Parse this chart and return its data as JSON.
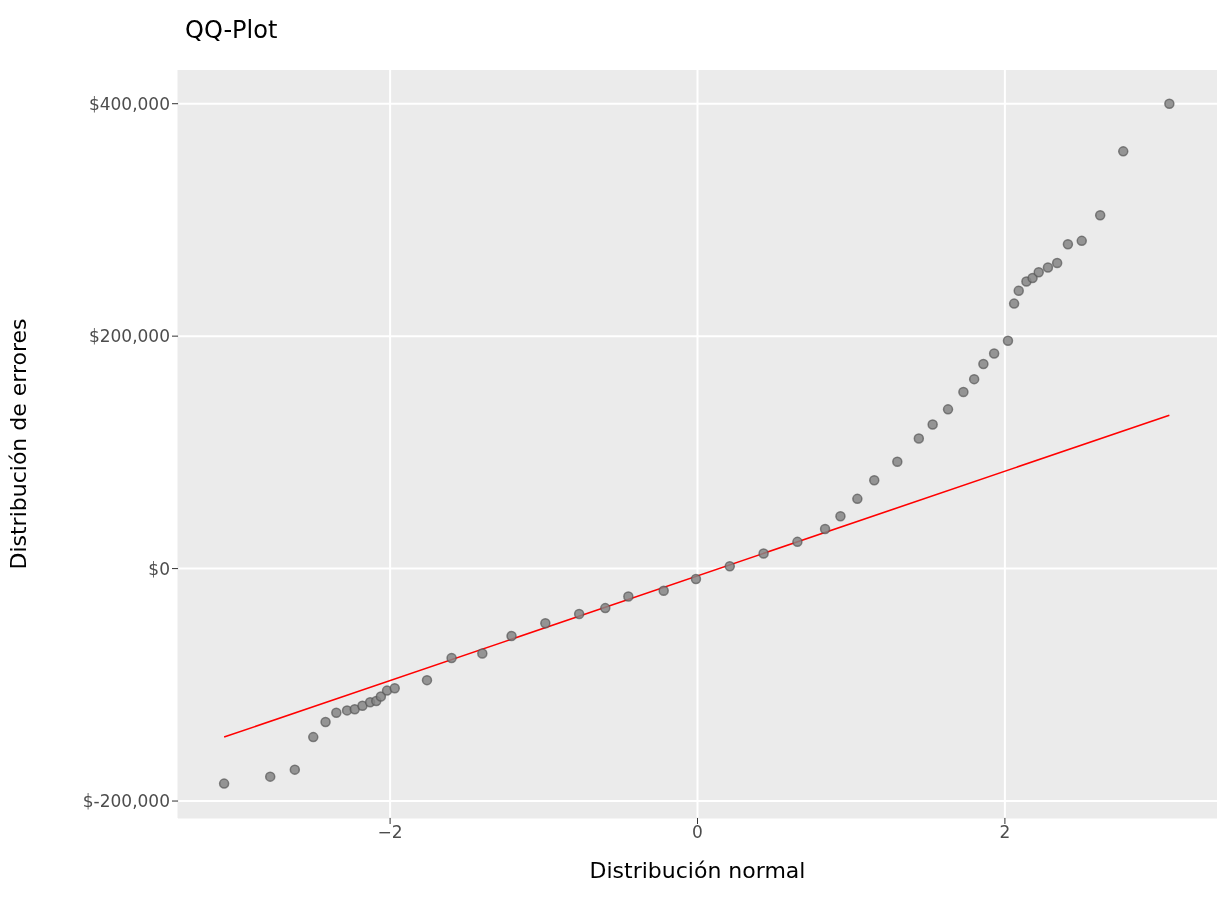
{
  "chart_data": {
    "type": "scatter",
    "title": "QQ-Plot",
    "xlabel": "Distribución normal",
    "ylabel": "Distribución de errores",
    "xlim": [
      -3.38,
      3.38
    ],
    "xticks": [
      {
        "value": -2,
        "label": "−2"
      },
      0,
      2
    ],
    "ylim": [
      -214600,
      429000
    ],
    "yticks": [
      {
        "value": -200000,
        "label": "$-200,000"
      },
      {
        "value": 0,
        "label": "$0"
      },
      {
        "value": 200000,
        "label": "$200,000"
      },
      {
        "value": 400000,
        "label": "$400,000"
      }
    ],
    "grid": true,
    "series": [
      {
        "marker": "circle",
        "color": "#858585",
        "x": [
          -3.08,
          -2.78,
          -2.62,
          -2.5,
          -2.42,
          -2.35,
          -2.28,
          -2.23,
          -2.18,
          -2.13,
          -2.09,
          -2.06,
          -2.02,
          -1.97,
          -1.76,
          -1.6,
          -1.4,
          -1.21,
          -0.99,
          -0.77,
          -0.6,
          -0.45,
          -0.22,
          -0.01,
          0.21,
          0.43,
          0.65,
          0.83,
          0.93,
          1.04,
          1.15,
          1.3,
          1.44,
          1.53,
          1.63,
          1.73,
          1.8,
          1.86,
          1.93,
          2.02,
          2.06,
          2.09,
          2.14,
          2.18,
          2.22,
          2.28,
          2.34,
          2.41,
          2.5,
          2.62,
          2.77,
          3.07
        ],
        "values": [
          -185000,
          -179000,
          -173000,
          -145000,
          -132000,
          -124000,
          -122000,
          -121000,
          -118000,
          -115000,
          -114000,
          -110000,
          -105000,
          -103000,
          -96000,
          -77000,
          -73000,
          -58000,
          -47000,
          -39000,
          -34000,
          -24000,
          -19000,
          -9000,
          2000,
          13000,
          23000,
          34000,
          45000,
          60000,
          76000,
          92000,
          112000,
          124000,
          137000,
          152000,
          163000,
          176000,
          185000,
          196000,
          228000,
          239000,
          247000,
          250000,
          255000,
          259000,
          263000,
          279000,
          282000,
          304000,
          359000,
          400000
        ]
      },
      {
        "type": "line",
        "marker": "none",
        "color": "#ff0000",
        "x": [
          -3.08,
          3.07
        ],
        "values": [
          -145000,
          132000
        ]
      }
    ]
  }
}
